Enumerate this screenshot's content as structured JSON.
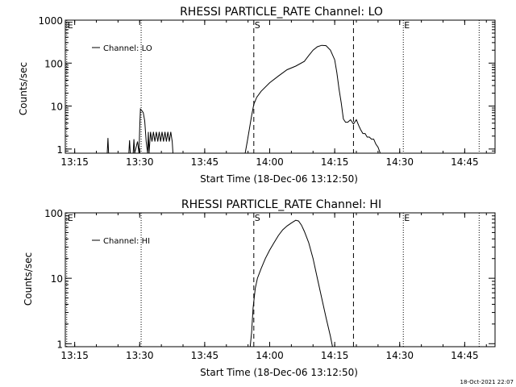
{
  "chart_data": [
    {
      "type": "line",
      "title": "RHESSI PARTICLE_RATE Channel: LO",
      "xlabel": "Start Time (18-Dec-06 13:12:50)",
      "ylabel": "Counts/sec",
      "yscale": "log",
      "xlim": [
        "13:12:50",
        "14:52:00"
      ],
      "ylim": [
        0.8,
        1000
      ],
      "x_ticks": [
        "13:15",
        "13:30",
        "13:45",
        "14:00",
        "14:15",
        "14:30",
        "14:45"
      ],
      "y_ticks": [
        {
          "value": 1,
          "label": "1"
        },
        {
          "value": 10,
          "label": "10"
        },
        {
          "value": 100,
          "label": "100"
        },
        {
          "value": 1000,
          "label": "1000"
        }
      ],
      "legend": {
        "label": "Channel: LO",
        "position": "top-left"
      },
      "dashed_lines": [
        "13:56:20",
        "14:19:20"
      ],
      "dotted_lines": [
        "13:13:10",
        "13:30:20",
        "14:30:50",
        "14:48:20"
      ],
      "markers": [
        {
          "label": "E",
          "at": "13:13:10"
        },
        {
          "label": "S",
          "at": "13:56:20"
        },
        {
          "label": "E",
          "at": "14:30:50"
        }
      ],
      "series": [
        {
          "x": [
            "13:22:30",
            "13:22:40",
            "13:22:50",
            "13:27:30",
            "13:27:40",
            "13:27:50",
            "13:28:30",
            "13:28:40",
            "13:28:50",
            "13:29:30",
            "13:29:50",
            "13:30:00",
            "13:30:10",
            "13:30:30",
            "13:30:50",
            "13:31:10",
            "13:31:30",
            "13:31:50",
            "13:32:00",
            "13:32:10",
            "13:32:30",
            "13:32:50",
            "13:33:10",
            "13:33:30",
            "13:33:50",
            "13:34:10",
            "13:34:30",
            "13:34:50",
            "13:35:10",
            "13:35:30",
            "13:35:50",
            "13:36:10",
            "13:36:30",
            "13:36:50",
            "13:37:10",
            "13:37:30",
            "13:37:40",
            "13:54:20",
            "13:54:50",
            "13:55:20",
            "13:55:50",
            "13:56:20",
            "13:57:00",
            "13:58:00",
            "14:00:00",
            "14:02:00",
            "14:04:00",
            "14:06:00",
            "14:08:00",
            "14:09:00",
            "14:10:00",
            "14:11:00",
            "14:12:00",
            "14:13:00",
            "14:14:00",
            "14:15:00",
            "14:15:30",
            "14:16:00",
            "14:16:30",
            "14:17:00",
            "14:17:30",
            "14:18:00",
            "14:18:40",
            "14:19:20",
            "14:20:00",
            "14:20:30",
            "14:21:00",
            "14:21:30",
            "14:22:00",
            "14:22:30",
            "14:23:00",
            "14:23:30",
            "14:24:00",
            "14:24:30",
            "14:25:00",
            "14:25:30"
          ],
          "values": [
            0.8,
            1.8,
            0.8,
            0.8,
            1.6,
            0.8,
            0.8,
            1.7,
            0.8,
            1.5,
            0.8,
            3.2,
            8.5,
            7.8,
            7,
            4.5,
            1.5,
            0.8,
            2.5,
            0.8,
            2.5,
            1.5,
            2.5,
            1.5,
            2.5,
            1.5,
            2.5,
            1.5,
            2.5,
            1.5,
            2.5,
            1.5,
            2.5,
            1.5,
            2.5,
            1.5,
            0.8,
            0.8,
            1.5,
            3,
            6,
            11,
            16,
            22,
            35,
            50,
            70,
            85,
            110,
            150,
            200,
            240,
            260,
            255,
            200,
            120,
            60,
            25,
            12,
            5,
            4.2,
            4.2,
            4.8,
            3.8,
            4.8,
            3.6,
            2.8,
            2.3,
            2.3,
            1.9,
            1.9,
            1.7,
            1.7,
            1.3,
            1.1,
            0.8
          ]
        }
      ]
    },
    {
      "type": "line",
      "title": "RHESSI PARTICLE_RATE Channel: HI",
      "xlabel": "Start Time (18-Dec-06 13:12:50)",
      "ylabel": "Counts/sec",
      "yscale": "log",
      "xlim": [
        "13:12:50",
        "14:52:00"
      ],
      "ylim": [
        0.9,
        100
      ],
      "x_ticks": [
        "13:15",
        "13:30",
        "13:45",
        "14:00",
        "14:15",
        "14:30",
        "14:45"
      ],
      "y_ticks": [
        {
          "value": 1,
          "label": "1"
        },
        {
          "value": 10,
          "label": "10"
        },
        {
          "value": 100,
          "label": "100"
        }
      ],
      "legend": {
        "label": "Channel: HI",
        "position": "top-left"
      },
      "dashed_lines": [
        "13:56:20",
        "14:19:20"
      ],
      "dotted_lines": [
        "13:13:10",
        "13:30:20",
        "14:30:50",
        "14:48:20"
      ],
      "markers": [
        {
          "label": "E",
          "at": "13:13:10"
        },
        {
          "label": "S",
          "at": "13:56:20"
        },
        {
          "label": "E",
          "at": "14:30:50"
        }
      ],
      "series": [
        {
          "x": [
            "13:55:30",
            "13:55:50",
            "13:56:10",
            "13:56:40",
            "13:57:10",
            "13:58:00",
            "13:59:00",
            "14:00:00",
            "14:01:00",
            "14:02:00",
            "14:03:00",
            "14:04:00",
            "14:05:00",
            "14:06:00",
            "14:06:40",
            "14:07:20",
            "14:08:00",
            "14:09:00",
            "14:10:00",
            "14:11:00",
            "14:12:00",
            "14:13:00",
            "14:14:00",
            "14:14:30"
          ],
          "values": [
            0.9,
            1.5,
            3.5,
            7,
            10,
            14,
            20,
            27,
            35,
            45,
            55,
            63,
            70,
            77,
            75,
            65,
            52,
            35,
            20,
            10,
            5,
            2.5,
            1.3,
            0.9
          ]
        }
      ]
    }
  ],
  "footer": {
    "timestamp": "18-Oct-2021 22:07"
  }
}
